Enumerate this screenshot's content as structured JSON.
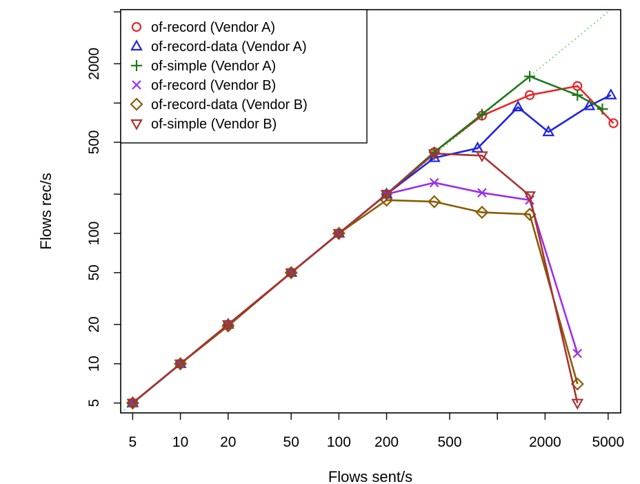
{
  "chart_data": {
    "type": "line",
    "title": "",
    "xlabel": "Flows sent/s",
    "ylabel": "Flows rec/s",
    "x_scale": "log",
    "y_scale": "log",
    "xlim": [
      4.2,
      6000
    ],
    "ylim": [
      4.2,
      5200
    ],
    "x_ticks": [
      5,
      10,
      20,
      50,
      100,
      200,
      500,
      1000,
      2000,
      5000
    ],
    "x_tick_labels": [
      "5",
      "10",
      "20",
      "50",
      "100",
      "200",
      "500",
      "",
      "2000",
      "5000"
    ],
    "y_ticks": [
      5,
      10,
      20,
      50,
      100,
      200,
      500,
      1000,
      2000,
      5000
    ],
    "y_tick_labels": [
      "5",
      "10",
      "20",
      "50",
      "100",
      "",
      "500",
      "",
      "2000",
      ""
    ],
    "reference_line": {
      "type": "y=x",
      "style": "dotted",
      "color": "#5ed65e"
    },
    "grid": false,
    "legend_position": "top-left",
    "series": [
      {
        "name": "of-record (Vendor A)",
        "marker": "circle",
        "color": "#e8262a",
        "x": [
          5,
          10,
          20,
          50,
          100,
          200,
          400,
          800,
          1600,
          3200,
          5400
        ],
        "y": [
          5,
          10,
          20,
          50,
          100,
          200,
          420,
          800,
          1150,
          1350,
          700
        ]
      },
      {
        "name": "of-record-data (Vendor A)",
        "marker": "triangle-up",
        "color": "#1f24e0",
        "x": [
          5,
          10,
          20,
          50,
          100,
          200,
          400,
          750,
          1350,
          2100,
          3800,
          5200
        ],
        "y": [
          5,
          10,
          20,
          50,
          100,
          200,
          380,
          450,
          930,
          600,
          950,
          1150
        ]
      },
      {
        "name": "of-simple (Vendor A)",
        "marker": "plus",
        "color": "#1c7a1c",
        "x": [
          5,
          10,
          20,
          50,
          100,
          200,
          400,
          800,
          1600,
          3200,
          4600
        ],
        "y": [
          5,
          10,
          20,
          50,
          100,
          200,
          420,
          820,
          1600,
          1150,
          900
        ]
      },
      {
        "name": "of-record (Vendor B)",
        "marker": "x",
        "color": "#9c2fe6",
        "x": [
          5,
          10,
          20,
          50,
          100,
          200,
          400,
          800,
          1600,
          3200
        ],
        "y": [
          5,
          10,
          20,
          50,
          100,
          200,
          245,
          205,
          180,
          12
        ]
      },
      {
        "name": "of-record-data (Vendor B)",
        "marker": "diamond",
        "color": "#8b5a00",
        "x": [
          5,
          10,
          20,
          50,
          100,
          200,
          400,
          800,
          1600,
          3200
        ],
        "y": [
          5,
          10,
          19.5,
          50,
          100,
          180,
          175,
          145,
          140,
          7
        ]
      },
      {
        "name": "of-simple (Vendor B)",
        "marker": "triangle-down",
        "color": "#a83232",
        "x": [
          5,
          10,
          20,
          50,
          100,
          200,
          400,
          800,
          1600,
          3200
        ],
        "y": [
          5,
          10,
          20,
          50,
          100,
          200,
          410,
          395,
          195,
          5
        ]
      }
    ]
  }
}
